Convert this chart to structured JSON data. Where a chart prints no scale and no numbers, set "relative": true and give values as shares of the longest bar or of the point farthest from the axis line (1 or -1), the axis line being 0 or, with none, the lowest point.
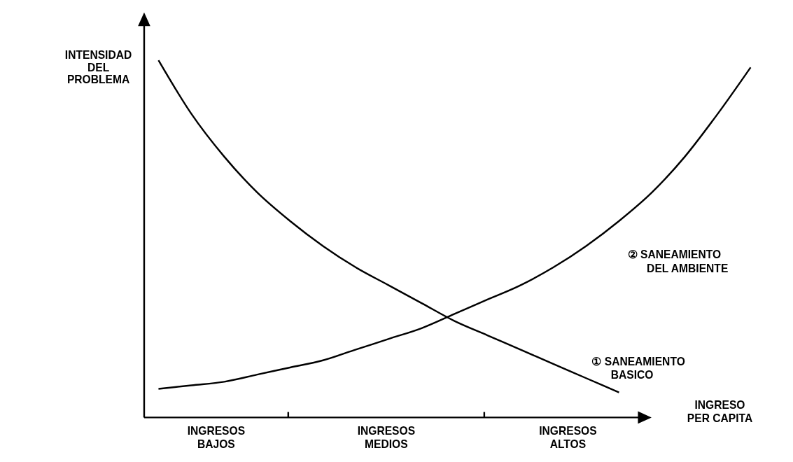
{
  "chart_data": {
    "type": "line",
    "relative": true,
    "xlabel": "INGRESO PER CAPITA",
    "ylabel": "INTENSIDAD DEL PROBLEMA",
    "categories": [
      null,
      null,
      null,
      null,
      null,
      null,
      null,
      null,
      null,
      null,
      null,
      null,
      null,
      null,
      null,
      null,
      null,
      null,
      null
    ],
    "series": [
      {
        "name": "① SANEAMIENTO BASICO",
        "color": "#000000",
        "values": [
          1.0,
          0.85,
          0.73,
          0.63,
          0.55,
          0.48,
          0.42,
          0.37,
          0.32,
          0.27,
          0.23,
          0.19,
          0.15,
          0.11,
          0.07,
          null,
          null,
          null,
          null
        ]
      },
      {
        "name": "② SANEAMIENTO DEL AMBIENTE",
        "color": "#000000",
        "values": [
          0.08,
          0.09,
          0.1,
          0.12,
          0.14,
          0.16,
          0.19,
          0.22,
          0.25,
          0.29,
          0.33,
          0.37,
          0.42,
          0.48,
          0.55,
          0.63,
          0.73,
          0.85,
          0.98
        ]
      }
    ],
    "annotations": [
      "INGRESOS BAJOS",
      "INGRESOS MEDIOS",
      "INGRESOS ALTOS"
    ],
    "marker": "none",
    "line_style": "solid"
  }
}
